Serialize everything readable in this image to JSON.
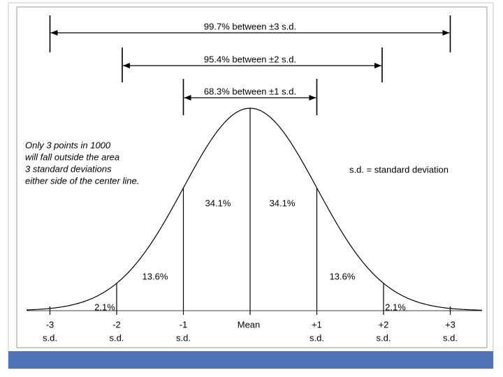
{
  "ranges": [
    {
      "label": "99.7% between  ±3 s.d."
    },
    {
      "label": "95.4% between  ±2 s.d."
    },
    {
      "label": "68.3% between  ±1 s.d."
    }
  ],
  "note": [
    "Only 3 points in 1000",
    "will fall outside the area",
    "3 standard deviations",
    "either side of the center line."
  ],
  "definition": "s.d. = standard deviation",
  "regions": [
    "2.1%",
    "13.6%",
    "34.1%",
    "34.1%",
    "13.6%",
    "2.1%"
  ],
  "axis_labels": [
    {
      "label": "-3",
      "unit": "s.d."
    },
    {
      "label": "-2",
      "unit": "s.d."
    },
    {
      "label": "-1",
      "unit": "s.d."
    },
    {
      "label": "Mean"
    },
    {
      "label": "+1",
      "unit": "s.d."
    },
    {
      "label": "+2",
      "unit": "s.d."
    },
    {
      "label": "+3",
      "unit": "s.d."
    }
  ]
}
